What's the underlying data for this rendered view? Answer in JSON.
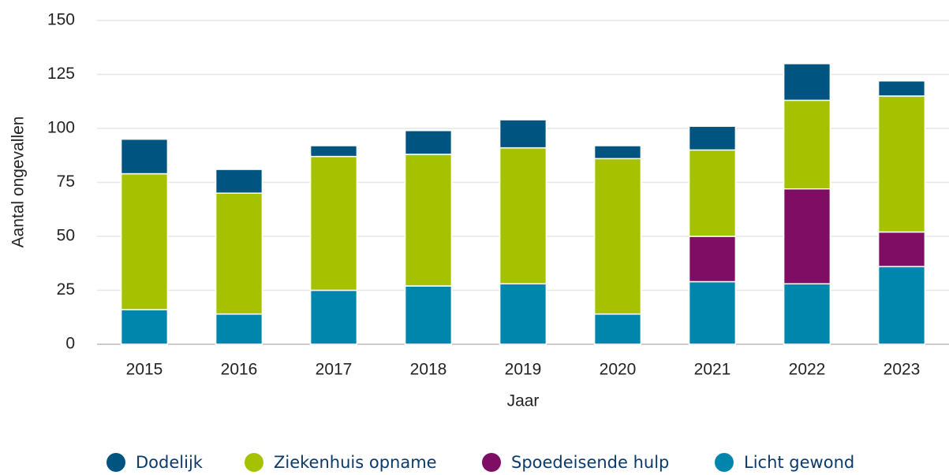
{
  "chart_data": {
    "type": "stacked_bar",
    "xlabel": "Jaar",
    "ylabel": "Aantal ongevallen",
    "categories": [
      "2015",
      "2016",
      "2017",
      "2018",
      "2019",
      "2020",
      "2021",
      "2022",
      "2023"
    ],
    "series": [
      {
        "name": "Dodelijk",
        "color": "#005480",
        "values": [
          16,
          11,
          5,
          11,
          13,
          6,
          11,
          17,
          7
        ]
      },
      {
        "name": "Ziekenhuis opname",
        "color": "#a5c100",
        "values": [
          63,
          56,
          62,
          61,
          63,
          72,
          40,
          41,
          63
        ]
      },
      {
        "name": "Spoedeisende hulp",
        "color": "#7d0e64",
        "values": [
          0,
          0,
          0,
          0,
          0,
          0,
          21,
          44,
          16
        ]
      },
      {
        "name": "Licht gewond",
        "color": "#0086ad",
        "values": [
          16,
          14,
          25,
          27,
          28,
          14,
          29,
          28,
          36
        ]
      }
    ],
    "ylim": [
      0,
      150
    ],
    "yticks": [
      0,
      25,
      50,
      75,
      100,
      125,
      150
    ],
    "grid": true
  }
}
